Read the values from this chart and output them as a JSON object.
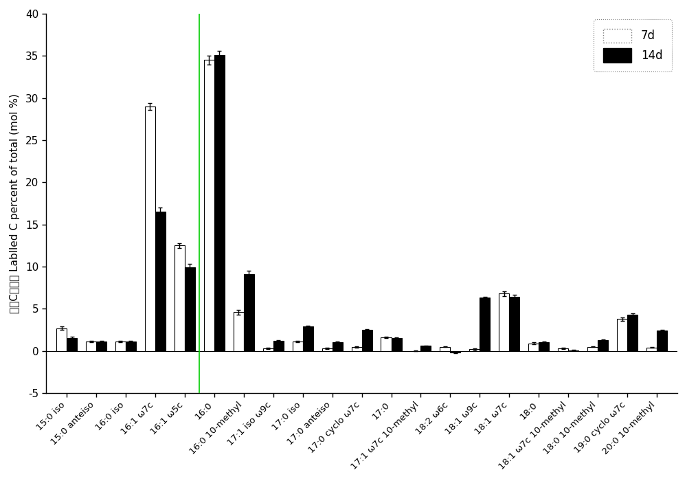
{
  "categories": [
    "15:0 iso",
    "15:0 anteiso",
    "16:0 iso",
    "16:1 ω7c",
    "16:1 ω5c",
    "16:0",
    "16:0 10-methyl",
    "17:1 iso ω9c",
    "17:0 iso",
    "17:0 anteiso",
    "17:0 cyclo ω7c",
    "17:0",
    "17:1 ω7c 10-methyl",
    "18:2 ω6c",
    "18:1 ω9c",
    "18:1 ω7c",
    "18:0",
    "18:1 ω7c 10-methyl",
    "18:0 10-methyl",
    "19:0 cyclo ω7c",
    "20:0 10-methyl"
  ],
  "values_7d": [
    2.7,
    1.1,
    1.1,
    29.0,
    12.5,
    34.5,
    4.6,
    0.3,
    1.1,
    0.3,
    0.5,
    1.6,
    0.0,
    0.5,
    0.2,
    6.8,
    0.9,
    0.3,
    0.5,
    3.8,
    0.4
  ],
  "values_14d": [
    1.5,
    1.1,
    1.1,
    16.5,
    9.9,
    35.1,
    9.1,
    1.2,
    2.9,
    1.0,
    2.5,
    1.5,
    0.6,
    -0.2,
    6.3,
    6.4,
    1.0,
    0.1,
    1.3,
    4.3,
    2.4
  ],
  "errors_7d": [
    0.2,
    0.1,
    0.1,
    0.4,
    0.3,
    0.5,
    0.3,
    0.08,
    0.1,
    0.08,
    0.08,
    0.1,
    0.05,
    0.05,
    0.1,
    0.3,
    0.1,
    0.05,
    0.05,
    0.2,
    0.05
  ],
  "errors_14d": [
    0.15,
    0.1,
    0.1,
    0.5,
    0.4,
    0.5,
    0.4,
    0.1,
    0.12,
    0.08,
    0.1,
    0.1,
    0.05,
    0.05,
    0.15,
    0.3,
    0.1,
    0.05,
    0.1,
    0.2,
    0.1
  ],
  "color_7d": "white",
  "color_14d": "black",
  "edgecolor": "black",
  "ylabel_chinese": "标记C百分比 Lablled C percent of total (mol %)",
  "ylim": [
    -5,
    40
  ],
  "yticks": [
    -5,
    0,
    5,
    10,
    15,
    20,
    25,
    30,
    35,
    40
  ],
  "legend_7d": "7d",
  "legend_14d": "14d",
  "bar_width": 0.35,
  "figsize": [
    10.0,
    7.0
  ],
  "dpi": 100,
  "green_line_x": 4.5,
  "green_line_color": "#00cc00"
}
